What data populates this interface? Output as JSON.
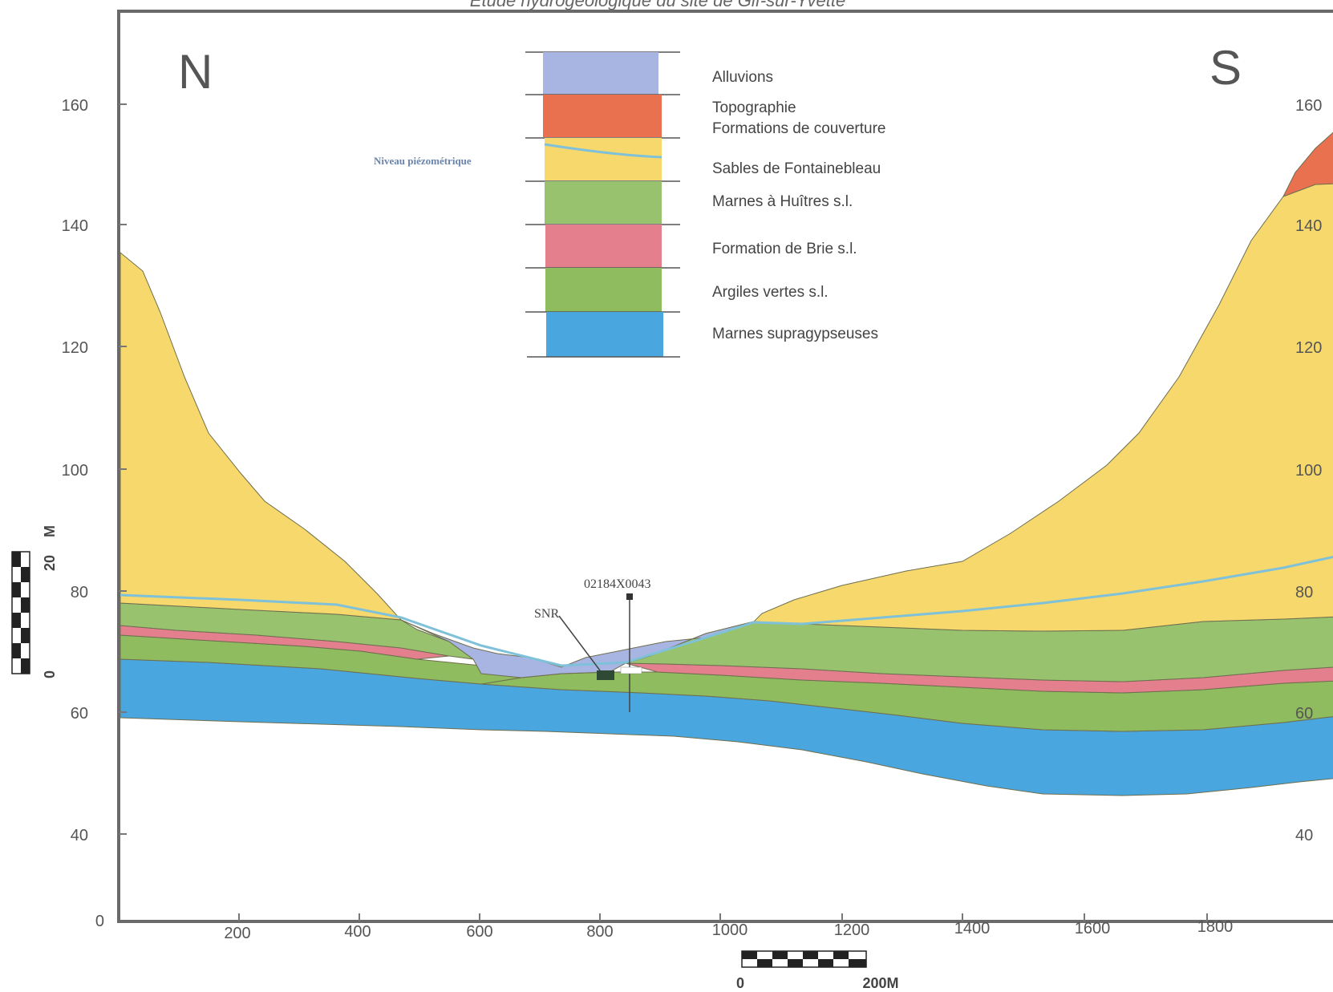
{
  "title": "Etude hydrogéologique du site de Gif-sur-Yvette",
  "directions": {
    "north": "N",
    "south": "S"
  },
  "y_ticks": [
    "160",
    "140",
    "120",
    "100",
    "80",
    "60",
    "40"
  ],
  "y_origin": "0",
  "x_ticks": [
    "200",
    "400",
    "600",
    "800",
    "1000",
    "1200",
    "1400",
    "1600",
    "1800"
  ],
  "legend": [
    {
      "label": "Alluvions",
      "color": "#a8b5e2"
    },
    {
      "label": "Topographie",
      "color": ""
    },
    {
      "label": "Formations de couverture",
      "color": "#ea7150"
    },
    {
      "label": "Sables de Fontainebleau",
      "color": "#f7d86c"
    },
    {
      "label": "Marnes à Huîtres s.l.",
      "color": "#99c26e"
    },
    {
      "label": "Formation de Brie s.l.",
      "color": "#e4808e"
    },
    {
      "label": "Argiles vertes s.l.",
      "color": "#8fbc5e"
    },
    {
      "label": "Marnes supragypseuses",
      "color": "#4aa6de"
    }
  ],
  "piezometric_label": "Niveau piézométrique",
  "piezometric_color": "#7ec1d9",
  "borehole_label": "02184X0043",
  "spring_label": "SNR",
  "vertical_scale": {
    "zero": "0",
    "value": "20",
    "unit": "M"
  },
  "horizontal_scale": {
    "zero": "0",
    "value": "200M"
  }
}
